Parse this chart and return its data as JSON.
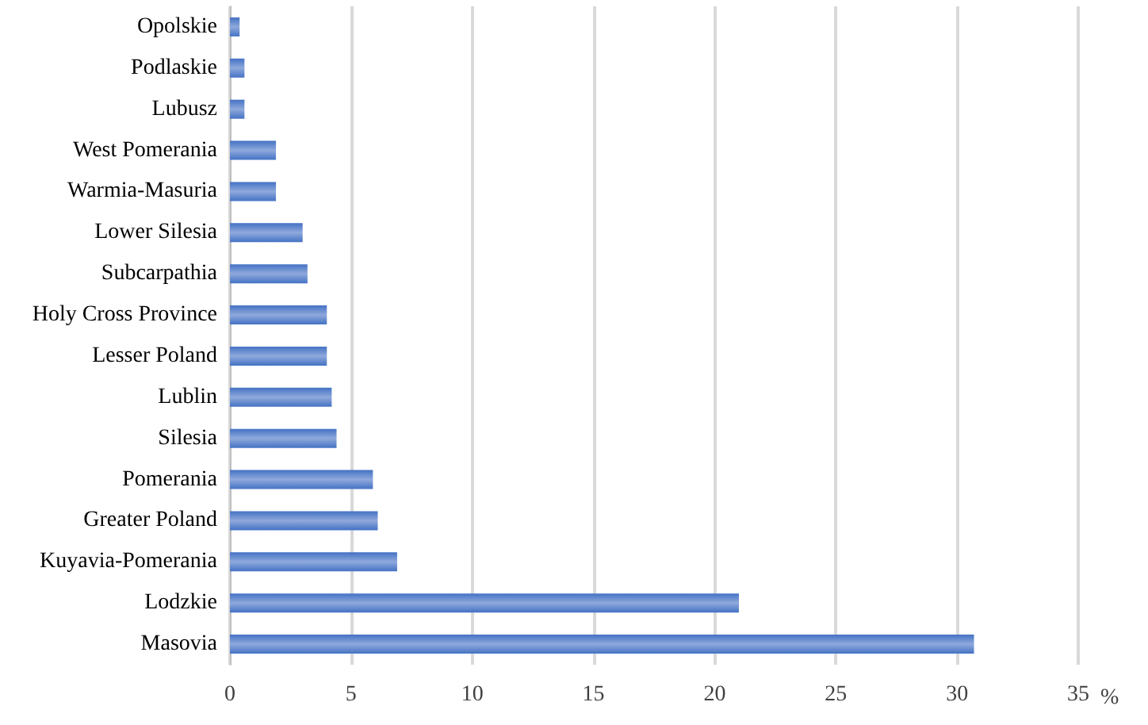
{
  "chart_data": {
    "type": "bar",
    "orientation": "horizontal",
    "categories": [
      "Opolskie",
      "Podlaskie",
      "Lubusz",
      "West Pomerania",
      "Warmia-Masuria",
      "Lower Silesia",
      "Subcarpathia",
      "Holy Cross Province",
      "Lesser Poland",
      "Lublin",
      "Silesia",
      "Pomerania",
      "Greater Poland",
      "Kuyavia-Pomerania",
      "Lodzkie",
      "Masovia"
    ],
    "values": [
      0.4,
      0.6,
      0.6,
      1.9,
      1.9,
      3.0,
      3.2,
      4.0,
      4.0,
      4.2,
      4.4,
      5.9,
      6.1,
      6.9,
      21.0,
      30.7
    ],
    "color": "#4472c4",
    "xlabel": "%",
    "xlim": [
      0,
      35
    ],
    "xticks": [
      0,
      5,
      10,
      15,
      20,
      25,
      30,
      35
    ],
    "grid": "x"
  }
}
